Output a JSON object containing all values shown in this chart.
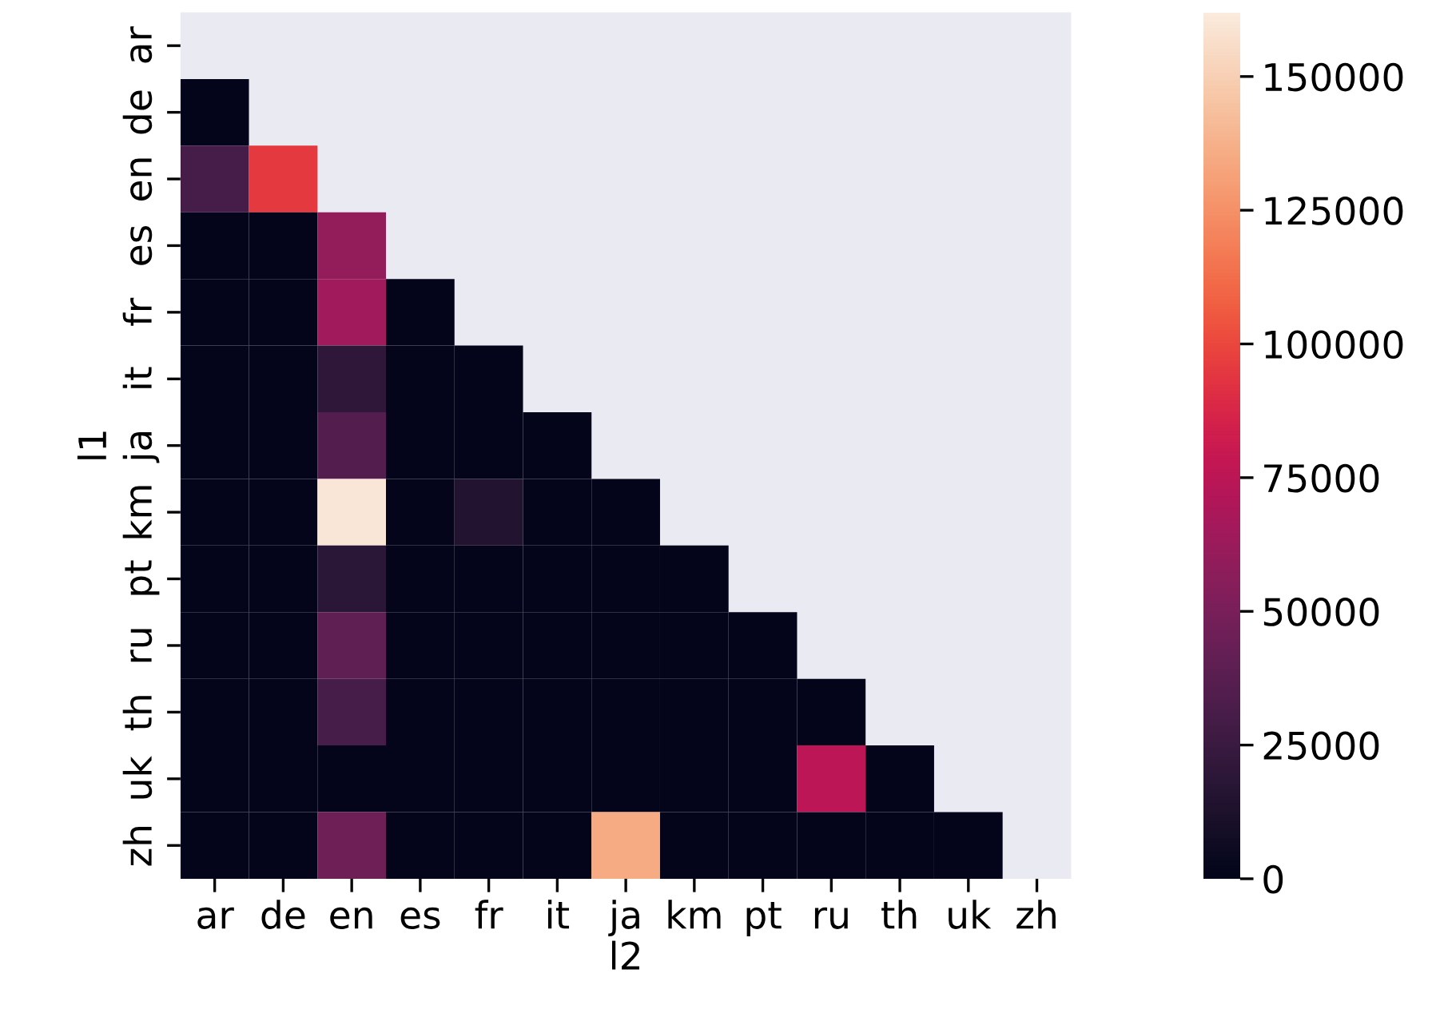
{
  "chart_data": {
    "type": "heatmap",
    "xlabel": "l2",
    "ylabel": "l1",
    "categories": [
      "ar",
      "de",
      "en",
      "es",
      "fr",
      "it",
      "ja",
      "km",
      "pt",
      "ru",
      "th",
      "uk",
      "zh"
    ],
    "y_categories": [
      "ar",
      "de",
      "en",
      "es",
      "fr",
      "it",
      "ja",
      "km",
      "pt",
      "ru",
      "th",
      "uk",
      "zh"
    ],
    "cells": [
      [
        null,
        null,
        null,
        null,
        null,
        null,
        null,
        null,
        null,
        null,
        null,
        null,
        null
      ],
      [
        1000,
        null,
        null,
        null,
        null,
        null,
        null,
        null,
        null,
        null,
        null,
        null,
        null
      ],
      [
        30000,
        95000,
        null,
        null,
        null,
        null,
        null,
        null,
        null,
        null,
        null,
        null,
        null
      ],
      [
        1000,
        1000,
        60000,
        null,
        null,
        null,
        null,
        null,
        null,
        null,
        null,
        null,
        null
      ],
      [
        1000,
        1000,
        65000,
        1000,
        null,
        null,
        null,
        null,
        null,
        null,
        null,
        null,
        null
      ],
      [
        1000,
        1000,
        20000,
        1000,
        1000,
        null,
        null,
        null,
        null,
        null,
        null,
        null,
        null
      ],
      [
        1000,
        1000,
        35000,
        1000,
        1000,
        1000,
        null,
        null,
        null,
        null,
        null,
        null,
        null
      ],
      [
        1000,
        1000,
        160000,
        1000,
        15000,
        1000,
        1000,
        null,
        null,
        null,
        null,
        null,
        null
      ],
      [
        1000,
        1000,
        18000,
        1000,
        1000,
        1000,
        1000,
        1000,
        null,
        null,
        null,
        null,
        null
      ],
      [
        1000,
        1000,
        40000,
        1000,
        1000,
        1000,
        1000,
        1000,
        1000,
        null,
        null,
        null,
        null
      ],
      [
        1000,
        1000,
        30000,
        1000,
        1000,
        1000,
        1000,
        1000,
        1000,
        1000,
        null,
        null,
        null
      ],
      [
        1000,
        1000,
        1000,
        1000,
        1000,
        1000,
        1000,
        1000,
        1000,
        75000,
        1000,
        null,
        null
      ],
      [
        1000,
        1000,
        45000,
        1000,
        1000,
        1000,
        135000,
        1000,
        1000,
        1000,
        1000,
        1000,
        null
      ]
    ],
    "clim": [
      0,
      162000
    ],
    "cticks": [
      0,
      25000,
      50000,
      75000,
      100000,
      125000,
      150000
    ]
  }
}
